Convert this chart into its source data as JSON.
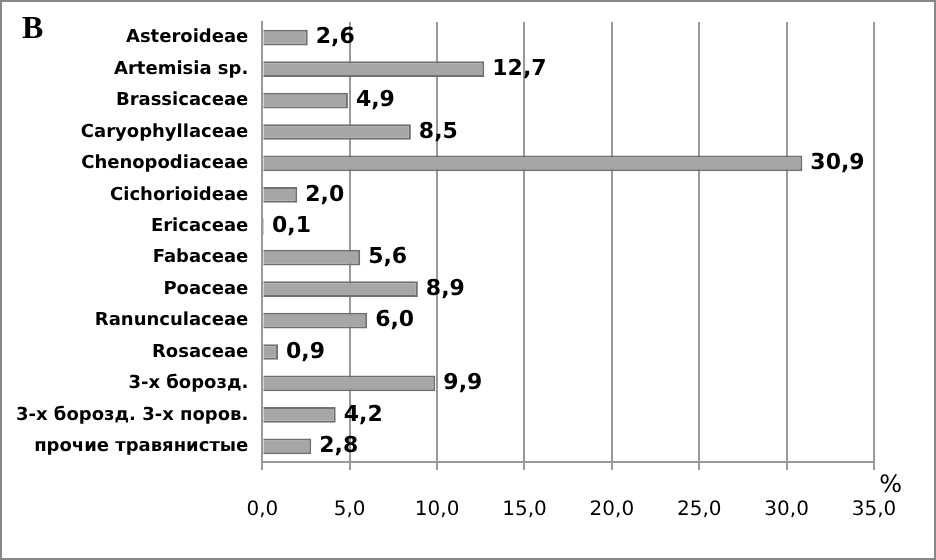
{
  "chart_data": {
    "type": "bar",
    "orientation": "horizontal",
    "title": "B",
    "xlabel": "%",
    "categories": [
      "Asteroideae",
      "Artemisia sp.",
      "Brassicaceae",
      "Caryophyllaceae",
      "Chenopodiaceae",
      "Cichorioideae",
      "Ericaceae",
      "Fabaceae",
      "Poaceae",
      "Ranunculaceae",
      "Rosaceae",
      "3-х борозд.",
      "3-х борозд. 3-х поров.",
      "прочие травянистые"
    ],
    "values": [
      2.6,
      12.7,
      4.9,
      8.5,
      30.9,
      2.0,
      0.1,
      5.6,
      8.9,
      6.0,
      0.9,
      9.9,
      4.2,
      2.8
    ],
    "value_labels": [
      "2,6",
      "12,7",
      "4,9",
      "8,5",
      "30,9",
      "2,0",
      "0,1",
      "5,6",
      "8,9",
      "6,0",
      "0,9",
      "9,9",
      "4,2",
      "2,8"
    ],
    "color": "#a6a6a6",
    "xlim": [
      0,
      35
    ],
    "xticks": [
      {
        "value": 0,
        "label": "0,0"
      },
      {
        "value": 5,
        "label": "5,0"
      },
      {
        "value": 10,
        "label": "10,0"
      },
      {
        "value": 15,
        "label": "15,0"
      },
      {
        "value": 20,
        "label": "20,0"
      },
      {
        "value": 25,
        "label": "25,0"
      },
      {
        "value": 30,
        "label": "30,0"
      },
      {
        "value": 35,
        "label": "35,0"
      }
    ],
    "grid": "x",
    "legend": false
  }
}
